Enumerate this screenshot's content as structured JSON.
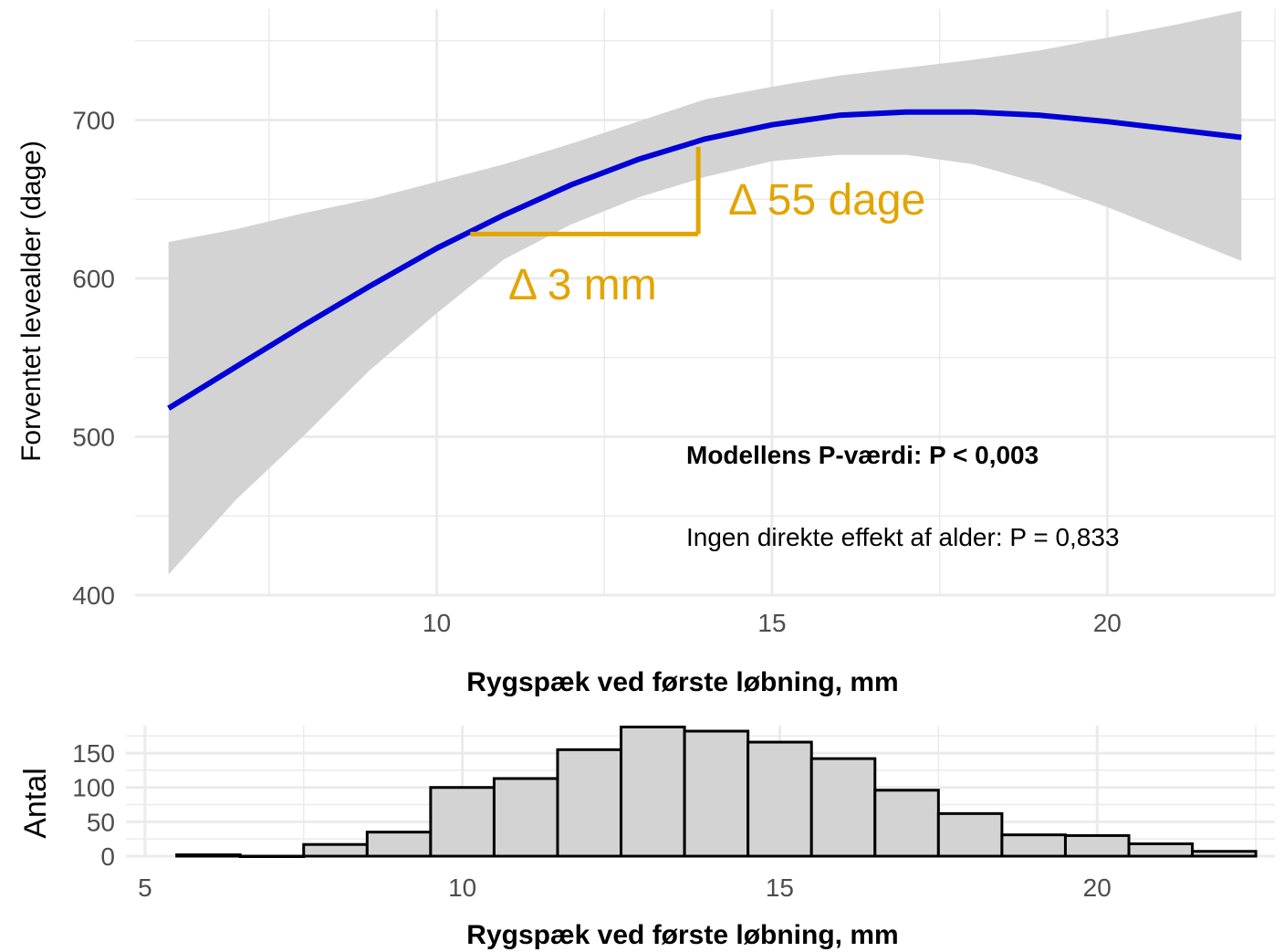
{
  "colors": {
    "line": "#0000d6",
    "band": "#d3d3d3",
    "annotation": "#e2a500",
    "grid": "#ebebeb",
    "bar_fill": "#d3d3d3",
    "bar_stroke": "#000000"
  },
  "chart_data": [
    {
      "type": "line",
      "ylabel": "Forventet levealder (dage)",
      "xlabel": "Rygspæk ved første løbning, mm",
      "xlim": [
        5.5,
        22.5
      ],
      "ylim": [
        400,
        770
      ],
      "x_ticks": [
        10,
        15,
        20
      ],
      "x_tick_labels": [
        "10",
        "15",
        "20"
      ],
      "y_ticks": [
        400,
        500,
        600,
        700
      ],
      "y_tick_labels": [
        "400",
        "500",
        "600",
        "700"
      ],
      "grid": true,
      "series": [
        {
          "x": [
            6,
            7,
            8,
            9,
            10,
            11,
            12,
            13,
            14,
            15,
            16,
            17,
            18,
            19,
            20,
            21,
            22
          ],
          "y": [
            518,
            544,
            570,
            595,
            619,
            640,
            659,
            675,
            688,
            697,
            703,
            705,
            705,
            703,
            699,
            694,
            689
          ],
          "ci_lower": [
            413,
            460,
            500,
            542,
            578,
            612,
            634,
            651,
            664,
            674,
            678,
            678,
            672,
            660,
            645,
            628,
            611
          ],
          "ci_upper": [
            623,
            631,
            641,
            650,
            661,
            672,
            685,
            699,
            713,
            721,
            728,
            733,
            738,
            744,
            752,
            760,
            769
          ]
        }
      ],
      "annotations": {
        "delta_x": {
          "label": "Δ 3 mm",
          "x_from": 10.5,
          "x_to": 13.9,
          "y": 628
        },
        "delta_y": {
          "label": "Δ 55 dage",
          "x": 13.9,
          "y_from": 628,
          "y_to": 683
        },
        "model_p": "Modellens P-værdi: P < 0,003",
        "age_effect": "Ingen direkte effekt af alder: P = 0,833"
      }
    },
    {
      "type": "bar",
      "ylabel": "Antal",
      "xlabel": "Rygspæk ved første løbning, mm",
      "xlim": [
        4.7,
        22.8
      ],
      "ylim": [
        0,
        190
      ],
      "x_ticks": [
        5,
        10,
        15,
        20
      ],
      "x_tick_labels": [
        "5",
        "10",
        "15",
        "20"
      ],
      "y_ticks": [
        0,
        50,
        100,
        150
      ],
      "y_tick_labels": [
        "0",
        "50",
        "100",
        "150"
      ],
      "grid": true,
      "bin_edges": [
        5.5,
        6.5,
        7.5,
        8.5,
        9.5,
        10.5,
        11.5,
        12.5,
        13.5,
        14.5,
        15.5,
        16.5,
        17.5,
        18.5,
        19.5,
        20.5,
        21.5,
        22.5
      ],
      "values": [
        2,
        0,
        17,
        35,
        100,
        113,
        155,
        188,
        182,
        166,
        142,
        96,
        62,
        31,
        30,
        18,
        7
      ]
    }
  ]
}
